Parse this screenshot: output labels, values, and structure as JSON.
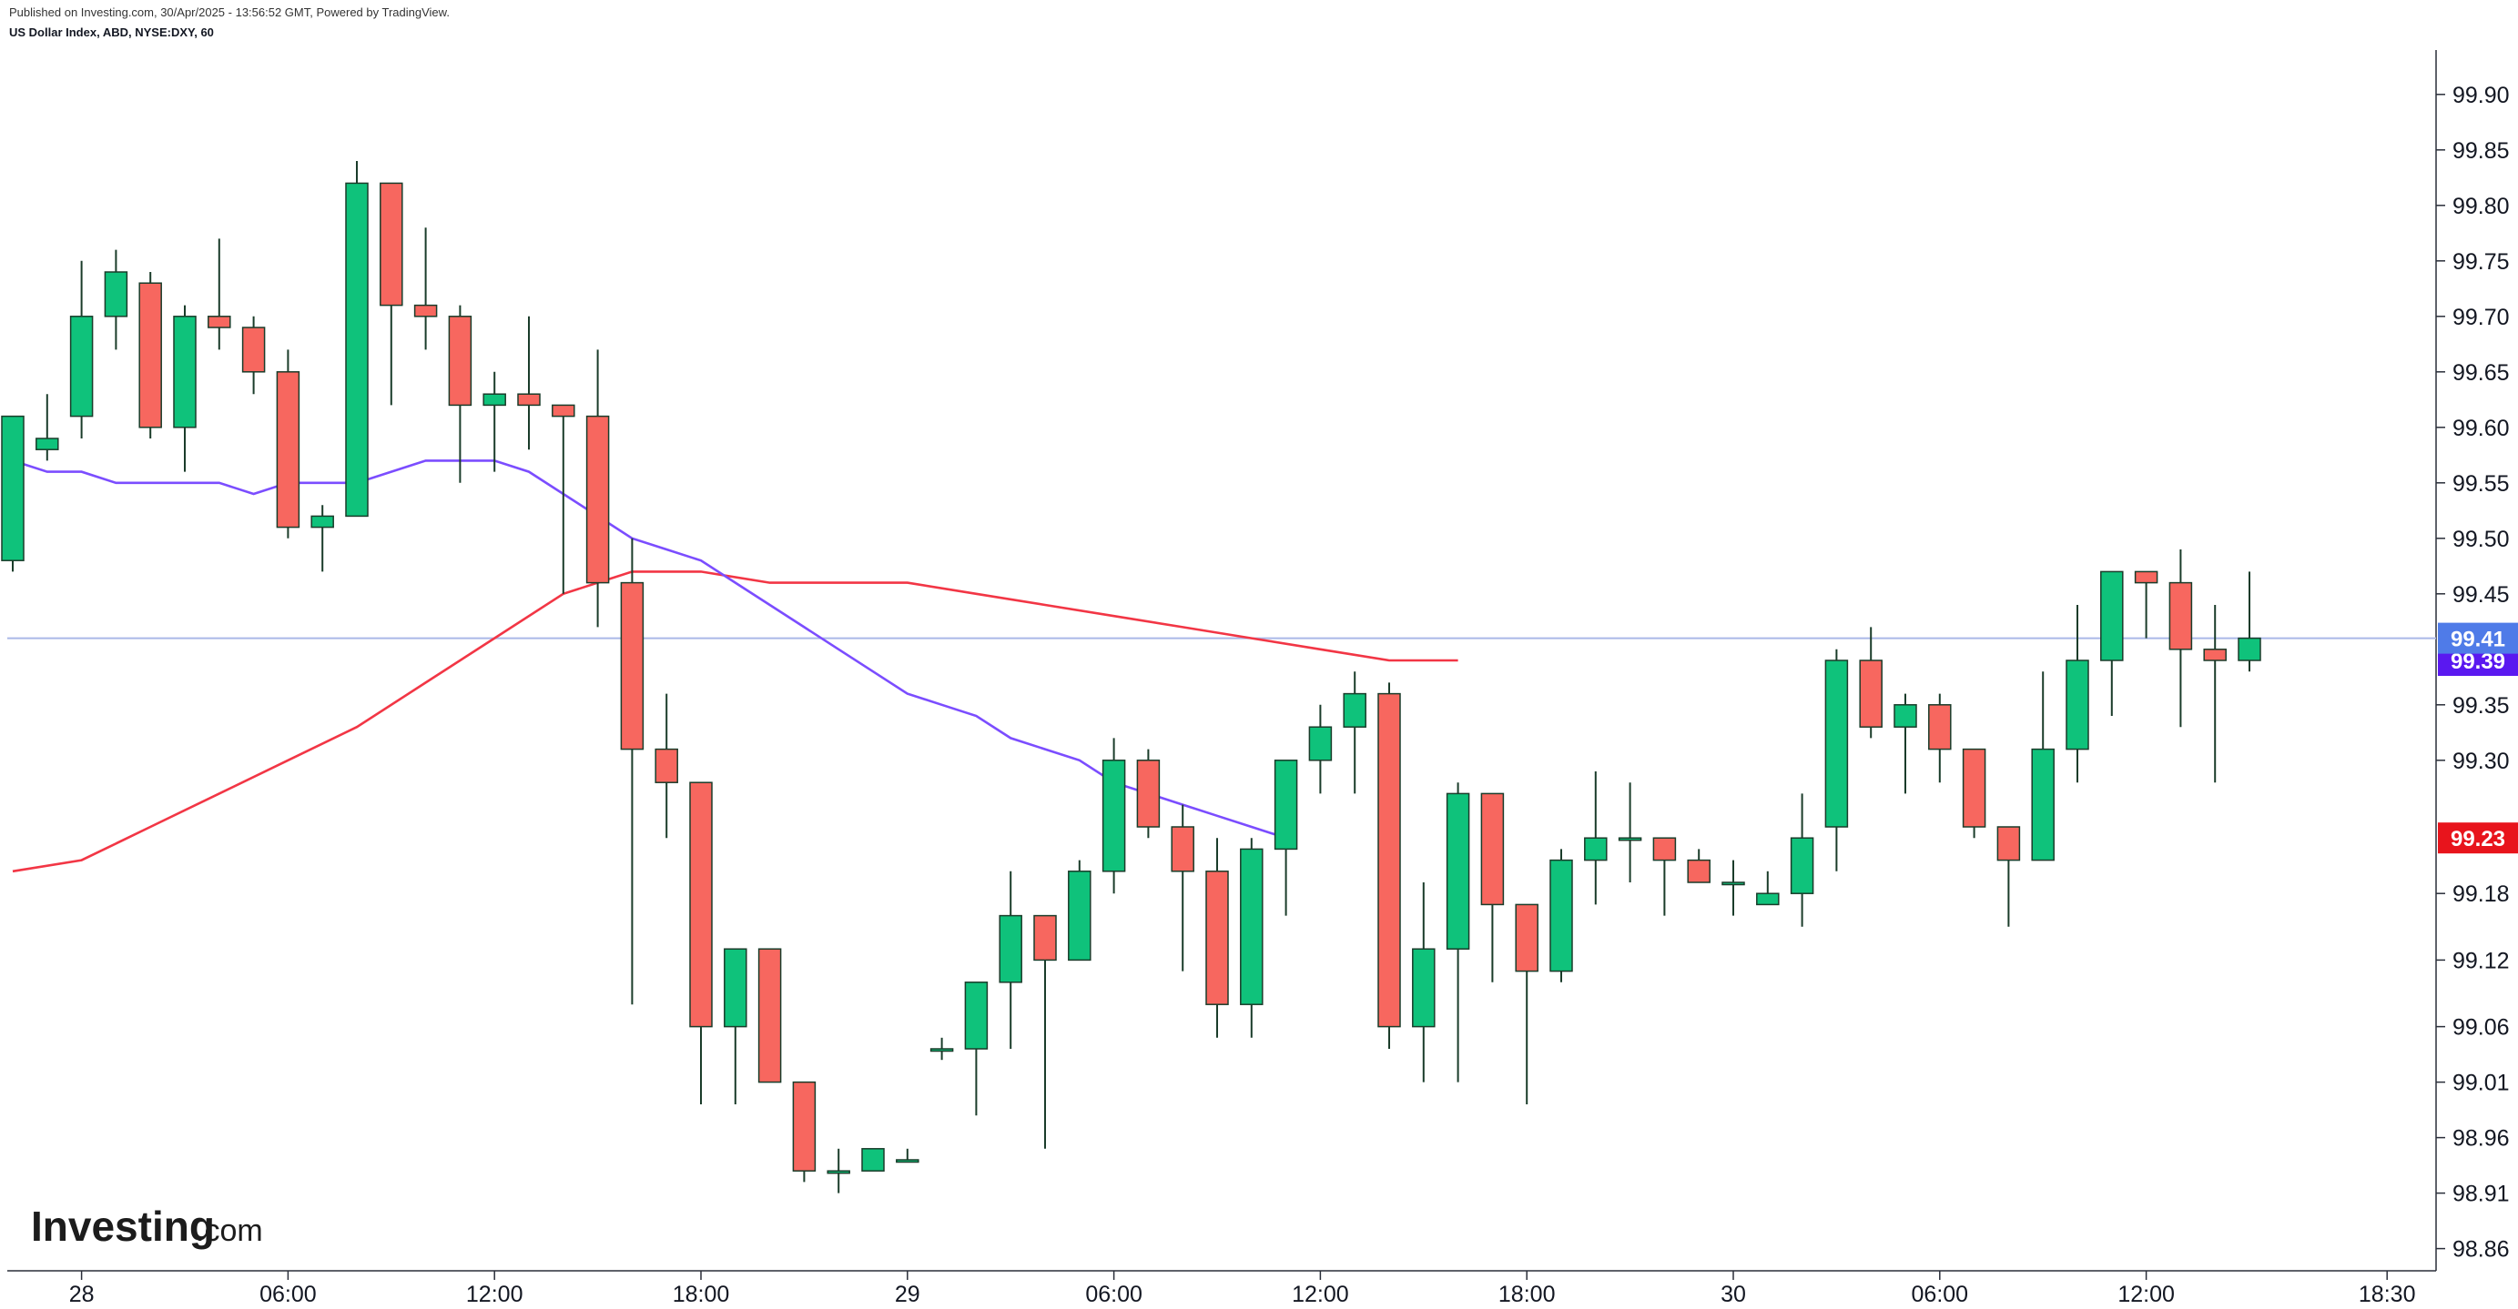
{
  "header": {
    "published": "Published on Investing.com, 30/Apr/2025 - 13:56:52 GMT, Powered by TradingView.",
    "symbol": "US Dollar Index, ABD, NYSE:DXY, 60"
  },
  "logo": {
    "main": "Investing",
    "suffix": ".com"
  },
  "colors": {
    "up": "#089981",
    "up_fill": "#0fc27b",
    "down_fill": "#f7675f",
    "wick": "#1a3c2a",
    "ma_fast": "#f23645",
    "ma_slow": "#7b4dff",
    "last_price_line": "#aab8e8",
    "last_price_tag": "#4f7be8",
    "ma_slow_tag": "#5a18f0",
    "ma_fast_tag": "#e8141c"
  },
  "chart_data": {
    "type": "candlestick",
    "timeframe_minutes": 60,
    "x_tick_labels": [
      {
        "label": "28",
        "bar": 2
      },
      {
        "label": "06:00",
        "bar": 8
      },
      {
        "label": "12:00",
        "bar": 14
      },
      {
        "label": "18:00",
        "bar": 20
      },
      {
        "label": "29",
        "bar": 26
      },
      {
        "label": "06:00",
        "bar": 32
      },
      {
        "label": "12:00",
        "bar": 38
      },
      {
        "label": "18:00",
        "bar": 44
      },
      {
        "label": "30",
        "bar": 50
      },
      {
        "label": "06:00",
        "bar": 56
      },
      {
        "label": "12:00",
        "bar": 62
      },
      {
        "label": "18:30",
        "bar": 69
      }
    ],
    "y_tick_labels": [
      "99.90",
      "99.85",
      "99.80",
      "99.75",
      "99.70",
      "99.65",
      "99.60",
      "99.55",
      "99.50",
      "99.45",
      "99.35",
      "99.30",
      "99.18",
      "99.12",
      "99.06",
      "99.01",
      "98.96",
      "98.91",
      "98.86"
    ],
    "ylim": [
      98.84,
      99.94
    ],
    "candles": [
      {
        "o": 99.48,
        "h": 99.61,
        "l": 99.47,
        "c": 99.61
      },
      {
        "o": 99.58,
        "h": 99.63,
        "l": 99.57,
        "c": 99.59
      },
      {
        "o": 99.61,
        "h": 99.75,
        "l": 99.59,
        "c": 99.7
      },
      {
        "o": 99.7,
        "h": 99.76,
        "l": 99.67,
        "c": 99.74
      },
      {
        "o": 99.73,
        "h": 99.74,
        "l": 99.59,
        "c": 99.6
      },
      {
        "o": 99.6,
        "h": 99.71,
        "l": 99.56,
        "c": 99.7
      },
      {
        "o": 99.7,
        "h": 99.77,
        "l": 99.67,
        "c": 99.69
      },
      {
        "o": 99.69,
        "h": 99.7,
        "l": 99.63,
        "c": 99.65
      },
      {
        "o": 99.65,
        "h": 99.67,
        "l": 99.5,
        "c": 99.51
      },
      {
        "o": 99.51,
        "h": 99.53,
        "l": 99.47,
        "c": 99.52
      },
      {
        "o": 99.52,
        "h": 99.84,
        "l": 99.52,
        "c": 99.82
      },
      {
        "o": 99.82,
        "h": 99.82,
        "l": 99.62,
        "c": 99.71
      },
      {
        "o": 99.71,
        "h": 99.78,
        "l": 99.67,
        "c": 99.7
      },
      {
        "o": 99.7,
        "h": 99.71,
        "l": 99.55,
        "c": 99.62
      },
      {
        "o": 99.62,
        "h": 99.65,
        "l": 99.56,
        "c": 99.63
      },
      {
        "o": 99.63,
        "h": 99.7,
        "l": 99.58,
        "c": 99.62
      },
      {
        "o": 99.62,
        "h": 99.62,
        "l": 99.45,
        "c": 99.61
      },
      {
        "o": 99.61,
        "h": 99.67,
        "l": 99.42,
        "c": 99.46
      },
      {
        "o": 99.46,
        "h": 99.5,
        "l": 99.08,
        "c": 99.31
      },
      {
        "o": 99.31,
        "h": 99.36,
        "l": 99.23,
        "c": 99.28
      },
      {
        "o": 99.28,
        "h": 99.28,
        "l": 98.99,
        "c": 99.06
      },
      {
        "o": 99.06,
        "h": 99.13,
        "l": 98.99,
        "c": 99.13
      },
      {
        "o": 99.13,
        "h": 99.13,
        "l": 99.01,
        "c": 99.01
      },
      {
        "o": 99.01,
        "h": 99.01,
        "l": 98.92,
        "c": 98.93
      },
      {
        "o": 98.93,
        "h": 98.95,
        "l": 98.91,
        "c": 98.93
      },
      {
        "o": 98.93,
        "h": 98.95,
        "l": 98.93,
        "c": 98.95
      },
      {
        "o": 98.94,
        "h": 98.95,
        "l": 98.94,
        "c": 98.94
      },
      {
        "o": 99.04,
        "h": 99.05,
        "l": 99.03,
        "c": 99.04
      },
      {
        "o": 99.04,
        "h": 99.1,
        "l": 98.98,
        "c": 99.1
      },
      {
        "o": 99.1,
        "h": 99.2,
        "l": 99.04,
        "c": 99.16
      },
      {
        "o": 99.16,
        "h": 99.16,
        "l": 98.95,
        "c": 99.12
      },
      {
        "o": 99.12,
        "h": 99.21,
        "l": 99.12,
        "c": 99.2
      },
      {
        "o": 99.2,
        "h": 99.32,
        "l": 99.18,
        "c": 99.3
      },
      {
        "o": 99.3,
        "h": 99.31,
        "l": 99.23,
        "c": 99.24
      },
      {
        "o": 99.24,
        "h": 99.26,
        "l": 99.11,
        "c": 99.2
      },
      {
        "o": 99.2,
        "h": 99.23,
        "l": 99.05,
        "c": 99.08
      },
      {
        "o": 99.08,
        "h": 99.23,
        "l": 99.05,
        "c": 99.22
      },
      {
        "o": 99.22,
        "h": 99.3,
        "l": 99.16,
        "c": 99.3
      },
      {
        "o": 99.3,
        "h": 99.35,
        "l": 99.27,
        "c": 99.33
      },
      {
        "o": 99.33,
        "h": 99.38,
        "l": 99.27,
        "c": 99.36
      },
      {
        "o": 99.36,
        "h": 99.37,
        "l": 99.04,
        "c": 99.06
      },
      {
        "o": 99.06,
        "h": 99.19,
        "l": 99.01,
        "c": 99.13
      },
      {
        "o": 99.13,
        "h": 99.28,
        "l": 99.01,
        "c": 99.27
      },
      {
        "o": 99.27,
        "h": 99.27,
        "l": 99.1,
        "c": 99.17
      },
      {
        "o": 99.17,
        "h": 99.17,
        "l": 98.99,
        "c": 99.11
      },
      {
        "o": 99.11,
        "h": 99.22,
        "l": 99.1,
        "c": 99.21
      },
      {
        "o": 99.21,
        "h": 99.29,
        "l": 99.17,
        "c": 99.23
      },
      {
        "o": 99.23,
        "h": 99.28,
        "l": 99.19,
        "c": 99.23
      },
      {
        "o": 99.23,
        "h": 99.23,
        "l": 99.16,
        "c": 99.21
      },
      {
        "o": 99.21,
        "h": 99.22,
        "l": 99.19,
        "c": 99.19
      },
      {
        "o": 99.19,
        "h": 99.21,
        "l": 99.16,
        "c": 99.19
      },
      {
        "o": 99.17,
        "h": 99.2,
        "l": 99.17,
        "c": 99.18
      },
      {
        "o": 99.18,
        "h": 99.27,
        "l": 99.15,
        "c": 99.23
      },
      {
        "o": 99.24,
        "h": 99.4,
        "l": 99.2,
        "c": 99.39
      },
      {
        "o": 99.39,
        "h": 99.42,
        "l": 99.32,
        "c": 99.33
      },
      {
        "o": 99.33,
        "h": 99.36,
        "l": 99.27,
        "c": 99.35
      },
      {
        "o": 99.35,
        "h": 99.36,
        "l": 99.28,
        "c": 99.31
      },
      {
        "o": 99.31,
        "h": 99.31,
        "l": 99.23,
        "c": 99.24
      },
      {
        "o": 99.24,
        "h": 99.24,
        "l": 99.15,
        "c": 99.21
      },
      {
        "o": 99.21,
        "h": 99.38,
        "l": 99.21,
        "c": 99.31
      },
      {
        "o": 99.31,
        "h": 99.44,
        "l": 99.28,
        "c": 99.39
      },
      {
        "o": 99.39,
        "h": 99.47,
        "l": 99.34,
        "c": 99.47
      },
      {
        "o": 99.47,
        "h": 99.47,
        "l": 99.41,
        "c": 99.46
      },
      {
        "o": 99.46,
        "h": 99.49,
        "l": 99.33,
        "c": 99.4
      },
      {
        "o": 99.4,
        "h": 99.44,
        "l": 99.28,
        "c": 99.39
      },
      {
        "o": 99.39,
        "h": 99.47,
        "l": 99.38,
        "c": 99.41
      }
    ],
    "ma_fast": [
      99.57,
      99.56,
      99.56,
      99.55,
      99.55,
      99.55,
      99.55,
      99.54,
      99.55,
      99.55,
      99.55,
      99.56,
      99.57,
      99.57,
      99.57,
      99.56,
      99.54,
      99.52,
      99.5,
      99.49,
      99.48,
      99.46,
      99.44,
      99.42,
      99.4,
      99.38,
      99.36,
      99.35,
      99.34,
      99.32,
      99.31,
      99.3,
      99.28,
      99.27,
      99.26,
      99.25,
      99.24,
      99.23
    ],
    "ma_fast_x": [
      0,
      1,
      2,
      3,
      4,
      5,
      6,
      7,
      8,
      9,
      10,
      11,
      12,
      13,
      14,
      15,
      16,
      17,
      18,
      19,
      20,
      21,
      22,
      23,
      24,
      25,
      26,
      27,
      28,
      29,
      30,
      31,
      32,
      33,
      34,
      35,
      36,
      37
    ],
    "ma_slow": [
      99.2,
      99.21,
      99.24,
      99.27,
      99.3,
      99.33,
      99.37,
      99.41,
      99.45,
      99.47,
      99.47,
      99.46,
      99.46,
      99.46,
      99.45,
      99.44,
      99.43,
      99.42,
      99.41,
      99.4,
      99.39,
      99.39
    ],
    "ma_slow_x": [
      0,
      2,
      4,
      6,
      8,
      10,
      12,
      14,
      16,
      18,
      20,
      22,
      24,
      26,
      28,
      30,
      32,
      34,
      36,
      38,
      40,
      42
    ],
    "last_price": "99.41",
    "ma_slow_last": "99.39",
    "ma_fast_last": "99.23"
  }
}
